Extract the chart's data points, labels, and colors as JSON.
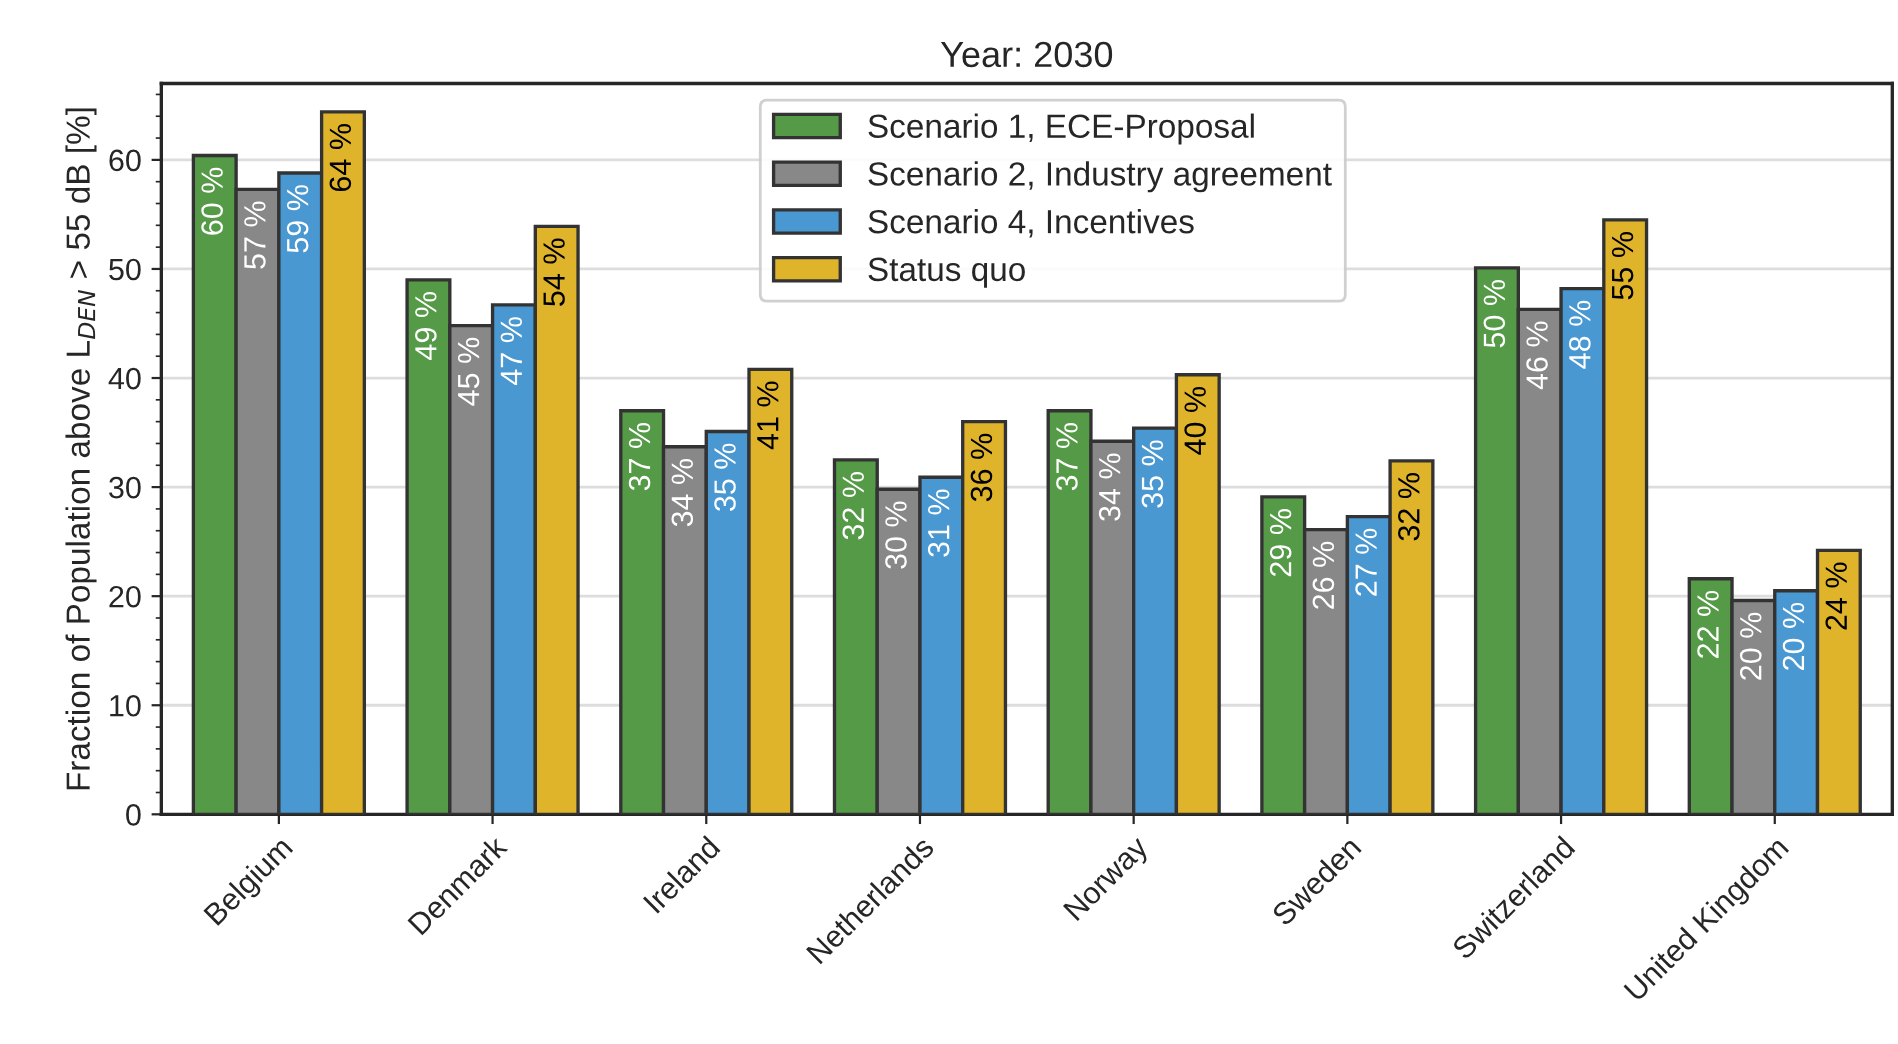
{
  "chart_data": {
    "type": "bar",
    "title": "Year: 2030",
    "ylabel": "Fraction of Population above L$_{DEN}$ > 55 dB [%]",
    "categories": [
      "Belgium",
      "Denmark",
      "Ireland",
      "Netherlands",
      "Norway",
      "Sweden",
      "Switzerland",
      "United Kingdom"
    ],
    "series": [
      {
        "name": "Scenario 1, ECE-Proposal",
        "color": "#559a47",
        "values": [
          60.4,
          49.0,
          37.0,
          32.5,
          37.0,
          29.1,
          50.1,
          21.6
        ],
        "value_labels": [
          "60 %",
          "49 %",
          "37 %",
          "32 %",
          "37 %",
          "29 %",
          "50 %",
          "22 %"
        ]
      },
      {
        "name": "Scenario 2, Industry agreement",
        "color": "#888888",
        "values": [
          57.3,
          44.8,
          33.7,
          29.8,
          34.2,
          26.1,
          46.3,
          19.6
        ],
        "value_labels": [
          "57 %",
          "45 %",
          "34 %",
          "30 %",
          "34 %",
          "26 %",
          "46 %",
          "20 %"
        ]
      },
      {
        "name": "Scenario 4, Incentives",
        "color": "#4a98d2",
        "values": [
          58.8,
          46.7,
          35.1,
          30.9,
          35.4,
          27.3,
          48.2,
          20.5
        ],
        "value_labels": [
          "59 %",
          "47 %",
          "35 %",
          "31 %",
          "35 %",
          "27 %",
          "48 %",
          "20 %"
        ]
      },
      {
        "name": "Status quo",
        "color": "#e0b42a",
        "values": [
          64.4,
          53.9,
          40.8,
          36.0,
          40.3,
          32.4,
          54.5,
          24.2
        ],
        "value_labels": [
          "64 %",
          "54 %",
          "41 %",
          "36 %",
          "40 %",
          "32 %",
          "55 %",
          "24 %"
        ]
      }
    ],
    "ylim": [
      0,
      67
    ],
    "yticks": [
      0,
      10,
      20,
      30,
      40,
      50,
      60
    ],
    "grid": "y",
    "legend": "top"
  }
}
